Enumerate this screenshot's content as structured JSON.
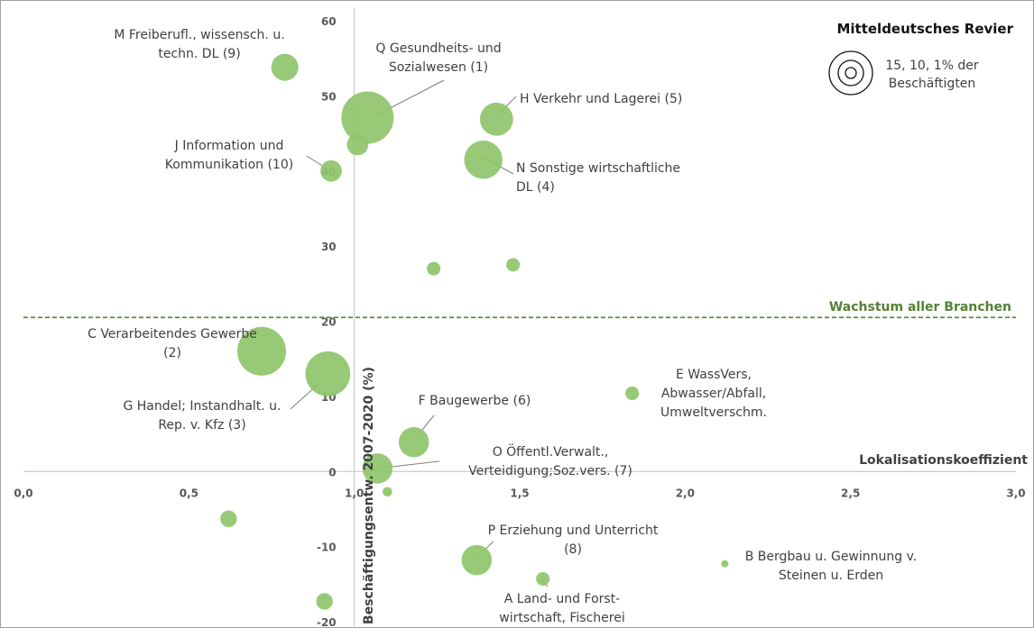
{
  "chart_data": {
    "type": "scatter",
    "title": "Mitteldeutsches Revier",
    "xlabel": "Lokalisationskoeffizient",
    "ylabel": "Beschäftigungsentw. 2007-2020 (%)",
    "xlim": [
      0.0,
      3.0
    ],
    "ylim": [
      -20,
      60
    ],
    "x_ticks": [
      "0,0",
      "0,5",
      "1,0",
      "1,5",
      "2,0",
      "2,5",
      "3,0"
    ],
    "y_ticks": [
      "-20",
      "-10",
      "0",
      "10",
      "20",
      "30",
      "40",
      "50",
      "60"
    ],
    "reference_line": {
      "label": "Wachstum aller Branchen",
      "y": 20.5,
      "color": "#538135"
    },
    "size_legend": {
      "text_line1": "15, 10, 1% der",
      "text_line2": "Beschäftigten"
    },
    "marker_color": "#8fc46a",
    "points": [
      {
        "id": "M",
        "label_lines": [
          "M Freiberufl., wissensch. u.",
          "techn. DL (9)"
        ],
        "x": 0.79,
        "y": 53.8,
        "share": 4
      },
      {
        "id": "Q",
        "label_lines": [
          "Q Gesundheits- und",
          "Sozialwesen (1)"
        ],
        "x": 1.04,
        "y": 47.1,
        "share": 15
      },
      {
        "id": "H",
        "label_lines": [
          "H Verkehr und Lagerei (5)"
        ],
        "x": 1.43,
        "y": 46.9,
        "share": 6
      },
      {
        "id": "U1",
        "label_lines": [],
        "x": 1.01,
        "y": 43.5,
        "share": 2.5
      },
      {
        "id": "J",
        "label_lines": [
          "J Information und",
          "Kommunikation (10)"
        ],
        "x": 0.93,
        "y": 40.0,
        "share": 2.5
      },
      {
        "id": "N",
        "label_lines": [
          "N Sonstige wirtschaftliche",
          "DL (4)"
        ],
        "x": 1.39,
        "y": 41.5,
        "share": 8
      },
      {
        "id": "U2",
        "label_lines": [],
        "x": 1.24,
        "y": 27.0,
        "share": 1
      },
      {
        "id": "U3",
        "label_lines": [],
        "x": 1.48,
        "y": 27.5,
        "share": 1
      },
      {
        "id": "C",
        "label_lines": [
          "C Verarbeitendes Gewerbe",
          "(2)"
        ],
        "x": 0.72,
        "y": 16.0,
        "share": 13
      },
      {
        "id": "G",
        "label_lines": [
          "G Handel; Instandhalt. u.",
          "Rep. v. Kfz (3)"
        ],
        "x": 0.92,
        "y": 13.0,
        "share": 11
      },
      {
        "id": "E",
        "label_lines": [
          "E WassVers,",
          "Abwasser/Abfall,",
          "Umweltverschm."
        ],
        "x": 1.84,
        "y": 10.4,
        "share": 1
      },
      {
        "id": "F",
        "label_lines": [
          "F Baugewerbe (6)"
        ],
        "x": 1.18,
        "y": 3.9,
        "share": 5
      },
      {
        "id": "O",
        "label_lines": [
          "O Öffentl.Verwalt.,",
          "Verteidigung;Soz.vers. (7)"
        ],
        "x": 1.07,
        "y": 0.4,
        "share": 5
      },
      {
        "id": "U4",
        "label_lines": [],
        "x": 1.1,
        "y": -2.7,
        "share": 0.5
      },
      {
        "id": "U5",
        "label_lines": [],
        "x": 0.62,
        "y": -6.3,
        "share": 1.5
      },
      {
        "id": "P",
        "label_lines": [
          "P Erziehung und Unterricht",
          "(8)"
        ],
        "x": 1.37,
        "y": -11.8,
        "share": 5
      },
      {
        "id": "B",
        "label_lines": [
          "B Bergbau u. Gewinnung v.",
          "Steinen u. Erden"
        ],
        "x": 2.12,
        "y": -12.3,
        "share": 0.2
      },
      {
        "id": "A",
        "label_lines": [
          "A Land- und Forst-",
          "wirtschaft, Fischerei"
        ],
        "x": 1.57,
        "y": -14.3,
        "share": 1
      },
      {
        "id": "U6",
        "label_lines": [],
        "x": 0.91,
        "y": -17.3,
        "share": 1.5
      }
    ]
  }
}
